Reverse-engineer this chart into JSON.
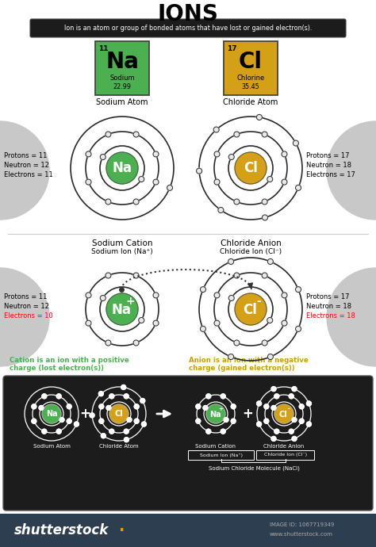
{
  "title": "IONS",
  "subtitle": "Ion is an atom or group of bonded atoms that have lost or gained electron(s).",
  "white_bg": "#ffffff",
  "dark_bg": "#1c1c1c",
  "na_green": "#4caf50",
  "cl_yellow": "#d4a017",
  "na_name": "Sodium",
  "cl_name": "Chlorine",
  "na_mass": "22.99",
  "cl_mass": "35.45",
  "na_num": "11",
  "cl_num": "17",
  "na_protons": "Protons = 11",
  "na_neutrons": "Neutron = 12",
  "na_electrons": "Electrons = 11",
  "cl_protons": "Protons = 17",
  "cl_neutrons": "Neutron = 18",
  "cl_electrons": "Electrons = 17",
  "na_cat_title": "Sodium Cation",
  "na_cat_sub": "Sodium Ion (Na⁺)",
  "cl_an_title": "Chloride Anion",
  "cl_an_sub": "Chloride Ion (Cl⁻)",
  "na_cat_protons": "Protons = 11",
  "na_cat_neutrons": "Neutron = 12",
  "na_cat_electrons": "Electrons = 10",
  "cl_an_protons": "Protons = 17",
  "cl_an_neutrons": "Neutron = 18",
  "cl_an_electrons": "Electrons = 18",
  "cation_desc": "Cation is an ion with a positive\ncharge (lost electron(s))",
  "anion_desc": "Anion is an ion with a negative\ncharge (gained electron(s))",
  "nacl_label": "Sodium Chloride Molecule (NaCl)",
  "na_atom_label": "Sodium Atom",
  "cl_atom_label": "Chloride Atom",
  "na_cation_label": "Sodium Cation",
  "cl_anion_label": "Chloride Anion",
  "footer_bg": "#2d3e50"
}
